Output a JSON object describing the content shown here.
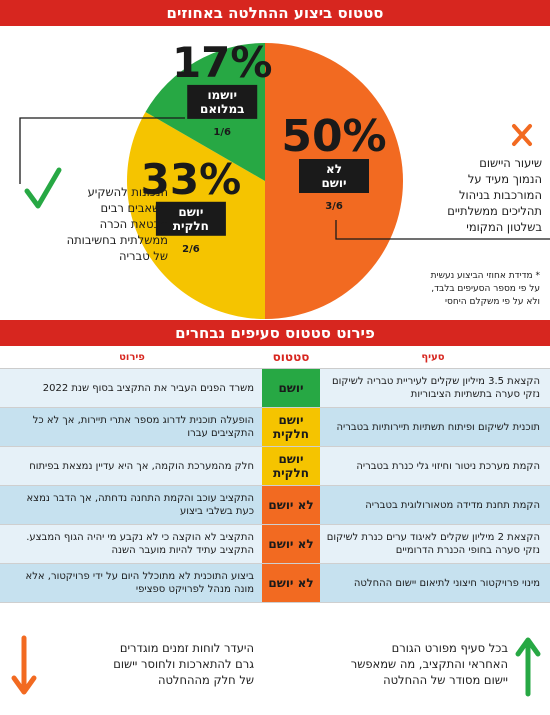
{
  "header": {
    "title": "סטטוס ביצוע ההחלטה באחוזים"
  },
  "chart_data": {
    "type": "pie",
    "title": "סטטוס ביצוע ההחלטה באחוזים",
    "slices": [
      {
        "label": "לא יושם",
        "percent": 50,
        "fraction": "3/6",
        "value": 3,
        "color": "#f26a21"
      },
      {
        "label": "יושם חלקית",
        "percent": 33,
        "fraction": "2/6",
        "value": 2,
        "color": "#f5c400"
      },
      {
        "label": "יושמו במלואם",
        "percent": 17,
        "fraction": "1/6",
        "value": 1,
        "color": "#27a844"
      }
    ],
    "slice_display": [
      {
        "pct": "50%",
        "lines": [
          "לא",
          "יושם"
        ],
        "frac": "3/6"
      },
      {
        "pct": "33%",
        "lines": [
          "יושם",
          "חלקית"
        ],
        "frac": "2/6"
      },
      {
        "pct": "17%",
        "lines": [
          "יושמו",
          "במלואם"
        ],
        "frac": "1/6"
      }
    ]
  },
  "annotations": {
    "left_text": [
      "הנכונות להשקיע",
      "משאבים רבים",
      "מבטאת הכרה",
      "ממשלתית בחשיבותה",
      "של טבריה"
    ],
    "right_text": [
      "שיעור היישום",
      "הנמוך מעיד על",
      "המורכבות בניהול",
      "תהליכים ממשלתיים",
      "בשלטון המקומי"
    ],
    "note": [
      "* מדידת אחוזי הביצוע נעשית",
      "על פי מספר הסעיפים בלבד,",
      "ולא על פי משקלם היחסי"
    ]
  },
  "table": {
    "title": "פירוט סטטוס סעיפים נבחרים",
    "headers": {
      "clause": "סעיף",
      "status": "סטטוס",
      "detail": "פירוט"
    },
    "rows": [
      {
        "clause": "הקצאת 3.5 מיליון שקלים לעיריית טבריה לשיקום נזקי סערה בתשתיות הציבוריות",
        "status": "יושם",
        "status_type": "full",
        "detail": "משרד הפנים העביר את התקציב בסוף שנת 2022"
      },
      {
        "clause": "תוכנית לשיקום ופיתוח תשתיות תיירותיות בטבריה",
        "status": "יושם חלקית",
        "status_type": "partial",
        "detail": "הופעלה תוכנית לדרוג מספר אתרי תיירות, אך לא כל התקציבים עברו"
      },
      {
        "clause": "הקמת מערכת ניטור וחיזוי גלי כנרת בטבריה",
        "status": "יושם חלקית",
        "status_type": "partial",
        "detail": "חלק מהמערכת הוקמה, אך היא עדיין נמצאת בפיתוח"
      },
      {
        "clause": "הקמת תחנת מדידה מטאורולוגית בטבריה",
        "status": "לא יושם",
        "status_type": "none",
        "detail": "התקציב עוכב והקמת התחנה נדחתה, אך הדבר נמצא כעת בשלבי ביצוע"
      },
      {
        "clause": "הקצאת 2 מיליון שקלים לאיגוד ערים כנרת לשיקום נזקי סערה בחופי הכנרת הדרומיים",
        "status": "לא יושם",
        "status_type": "none",
        "detail": "התקציב לא הוקצה כי לא נקבע מי יהיה הגוף המבצע. התקציב עתיד להיות מועבר השנה"
      },
      {
        "clause": "מינוי פרויקטור חיצוני לתיאום יישום ההחלטה",
        "status": "לא יושם",
        "status_type": "none",
        "detail": "ביצוע התוכנית לא מתוכלל היום על ידי פרויקטור, אלא מונה מנהל לפרויקט ספציפי"
      }
    ]
  },
  "footer": {
    "left_text": [
      "היעדר לוחות זמנים מוגדרים",
      "גרם להתארכות ולחוסר יישום",
      "של חלק מההחלטה"
    ],
    "right_text": [
      "בכל סעיף מפורט הגורם",
      "האחראי והתקציב, מה שמאפשר",
      "יישום מסודר של ההחלטה"
    ]
  },
  "colors": {
    "accent": "#d7261f",
    "full": "#27a844",
    "partial": "#f5c400",
    "none": "#f26a21",
    "check": "#27a844",
    "cross": "#f26a21"
  },
  "icons": {
    "check": "check-icon",
    "cross": "x-icon",
    "arrow_up": "arrow-up-icon",
    "arrow_down": "arrow-down-icon"
  }
}
